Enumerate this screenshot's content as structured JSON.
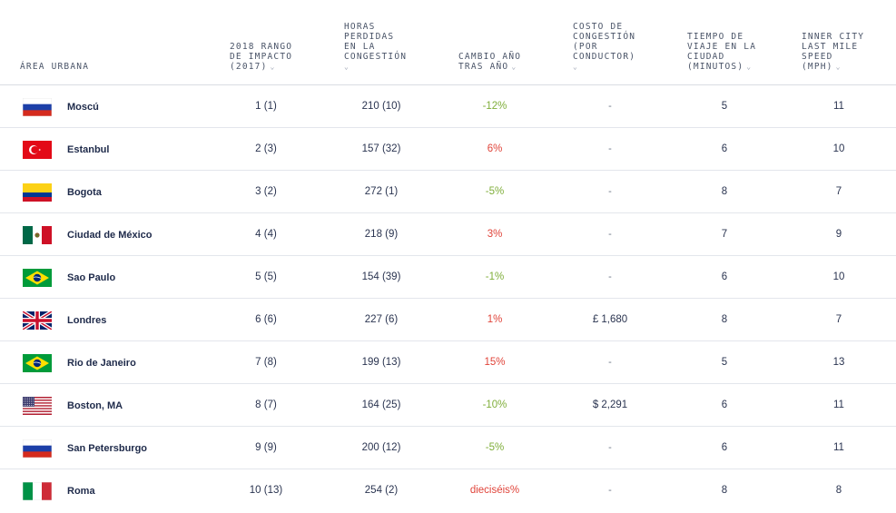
{
  "columns": {
    "area": "ÁREA URBANA",
    "rank": "2018 RANGO\nDE IMPACTO\n(2017)",
    "hours": "HORAS\nPERDIDAS\nEN LA\nCONGESTIÓN",
    "change": "CAMBIO AÑO\nTRAS AÑO",
    "cost": "COSTO DE\nCONGESTIÓN\n(POR\nCONDUCTOR)",
    "time": "TIEMPO DE\nVIAJE EN LA\nCIUDAD\n(MINUTOS)",
    "speed": "INNER CITY\nLAST MILE\nSPEED\n(MPH)"
  },
  "sort_icon": "chevron-down-icon",
  "colors": {
    "increase": "#e0443a",
    "decrease": "#7fae3a",
    "text": "#1e2a4a"
  },
  "rows": [
    {
      "flag": "russia-flag",
      "city": "Moscú",
      "rank": "1 (1)",
      "hours": "210 (10)",
      "change": "-12%",
      "change_dir": "neg",
      "cost": "-",
      "time": "5",
      "speed": "11"
    },
    {
      "flag": "turkey-flag",
      "city": "Estanbul",
      "rank": "2 (3)",
      "hours": "157 (32)",
      "change": "6%",
      "change_dir": "pos",
      "cost": "-",
      "time": "6",
      "speed": "10"
    },
    {
      "flag": "colombia-flag",
      "city": "Bogota",
      "rank": "3 (2)",
      "hours": "272 (1)",
      "change": "-5%",
      "change_dir": "neg",
      "cost": "-",
      "time": "8",
      "speed": "7"
    },
    {
      "flag": "mexico-flag",
      "city": "Ciudad de México",
      "rank": "4 (4)",
      "hours": "218 (9)",
      "change": "3%",
      "change_dir": "pos",
      "cost": "-",
      "time": "7",
      "speed": "9"
    },
    {
      "flag": "brazil-flag",
      "city": "Sao Paulo",
      "rank": "5 (5)",
      "hours": "154 (39)",
      "change": "-1%",
      "change_dir": "neg",
      "cost": "-",
      "time": "6",
      "speed": "10"
    },
    {
      "flag": "uk-flag",
      "city": "Londres",
      "rank": "6 (6)",
      "hours": "227 (6)",
      "change": "1%",
      "change_dir": "pos",
      "cost": "£ 1,680",
      "time": "8",
      "speed": "7"
    },
    {
      "flag": "brazil-flag",
      "city": "Rio de Janeiro",
      "rank": "7 (8)",
      "hours": "199 (13)",
      "change": "15%",
      "change_dir": "pos",
      "cost": "-",
      "time": "5",
      "speed": "13"
    },
    {
      "flag": "usa-flag",
      "city": "Boston, MA",
      "rank": "8 (7)",
      "hours": "164 (25)",
      "change": "-10%",
      "change_dir": "neg",
      "cost": "$ 2,291",
      "time": "6",
      "speed": "11"
    },
    {
      "flag": "russia-flag",
      "city": "San Petersburgo",
      "rank": "9 (9)",
      "hours": "200 (12)",
      "change": "-5%",
      "change_dir": "neg",
      "cost": "-",
      "time": "6",
      "speed": "11"
    },
    {
      "flag": "italy-flag",
      "city": "Roma",
      "rank": "10 (13)",
      "hours": "254 (2)",
      "change": "dieciséis%",
      "change_dir": "pos",
      "cost": "-",
      "time": "8",
      "speed": "8"
    }
  ]
}
